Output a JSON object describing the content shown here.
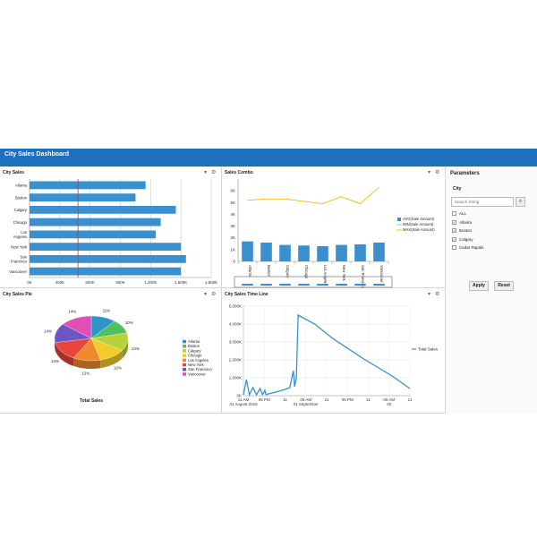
{
  "app": {
    "title": "City Sales Dashboard"
  },
  "panels": {
    "city_sales": "City Sales",
    "sales_combo": "Sales Combo",
    "city_sales_pie": "City Sales Pie",
    "city_sales_time_line": "City Sales Time Line"
  },
  "icons": {
    "collapse": "chevron-down-icon",
    "settings": "gear-icon",
    "search": "search-icon"
  },
  "parameters": {
    "header": "Parameters",
    "city_label": "City",
    "search_placeholder": "Search String",
    "options": [
      {
        "label": "ALL",
        "checked": false
      },
      {
        "label": "Atlanta",
        "checked": true
      },
      {
        "label": "Boston",
        "checked": true
      },
      {
        "label": "Calgary",
        "checked": true
      },
      {
        "label": "Cedar Rapids",
        "checked": false
      }
    ],
    "apply": "Apply",
    "reset": "Reset"
  },
  "colors": {
    "header": "#1f6fbf",
    "bar": "#3a8fcf",
    "ref_line": "#d9342b",
    "max_line": "#f5b800"
  },
  "chart_data": [
    {
      "type": "bar",
      "title": "City Sales",
      "orientation": "horizontal",
      "categories": [
        "Atlanta",
        "Boston",
        "Calgary",
        "Chicago",
        "Los Angeles",
        "New York",
        "San Francisco",
        "Vancouver"
      ],
      "category_labels": [
        [
          "Atlanta"
        ],
        [
          "Boston"
        ],
        [
          "Calgary"
        ],
        [
          "Chicago"
        ],
        [
          "Los",
          "Angeles"
        ],
        [
          "New York"
        ],
        [
          "San",
          "Francisco"
        ],
        [
          "Vancouver"
        ]
      ],
      "values": [
        1150000,
        1050000,
        1450000,
        1300000,
        1250000,
        1500000,
        1550000,
        1500000
      ],
      "xlim": [
        0,
        1800000
      ],
      "ticks": [
        0,
        300000,
        600000,
        900000,
        1200000,
        1500000,
        1800000
      ],
      "tick_labels": [
        "0K",
        "300K",
        "600K",
        "900K",
        "1,200K",
        "1,500K",
        "1,800K"
      ],
      "reference_line": 480000,
      "grid": true
    },
    {
      "type": "bar",
      "title": "Sales Combo",
      "categories": [
        "Atlanta",
        "Boston",
        "Calgary",
        "Chicago",
        "Los Angeles",
        "New York",
        "San Francisco",
        "Vancouver"
      ],
      "series": [
        {
          "name": "AVG(Sale Amount)",
          "type": "bar",
          "values": [
            1700,
            1600,
            1400,
            1350,
            1300,
            1400,
            1450,
            1600
          ]
        },
        {
          "name": "MIN(Sale Amount)",
          "type": "line",
          "values": [
            0,
            0,
            0,
            0,
            0,
            0,
            0,
            0
          ]
        },
        {
          "name": "MAX(Sale Amount)",
          "type": "line",
          "values": [
            5200,
            5300,
            5300,
            5100,
            4900,
            5500,
            4900,
            6300
          ]
        }
      ],
      "ylim": [
        0,
        7000
      ],
      "ticks": [
        0,
        1000,
        2000,
        3000,
        4000,
        5000,
        6000
      ],
      "tick_labels": [
        "0",
        "1K",
        "2K",
        "3K",
        "4K",
        "5K",
        "6K"
      ],
      "legend_position": "right"
    },
    {
      "type": "pie",
      "title": "City Sales Pie",
      "xlabel": "Total Sales",
      "categories": [
        "Atlanta",
        "Boston",
        "Calgary",
        "Chicago",
        "Los Angeles",
        "New York",
        "San Francisco",
        "Vancouver"
      ],
      "values": [
        11,
        10,
        13,
        12,
        12,
        14,
        14,
        14
      ],
      "labels": [
        "11%",
        "10%",
        "13%",
        "12%",
        "12%",
        "14%",
        "14%",
        "14%"
      ],
      "colors": [
        "#2e95c9",
        "#4fbf5f",
        "#b8d33a",
        "#f3cc2c",
        "#f0892c",
        "#e8463c",
        "#6e55c4",
        "#e04fb6"
      ],
      "legend_position": "right"
    },
    {
      "type": "line",
      "title": "City Sales Time Line",
      "series": [
        {
          "name": "Total Sales",
          "x": [
            0,
            0.05,
            0.1,
            0.16,
            0.22,
            0.28,
            0.32,
            0.36,
            0.38,
            0.42,
            0.48,
            0.6,
            0.7,
            0.78,
            0.84,
            0.86,
            0.89,
            0.92,
            1.2,
            1.5,
            2,
            2.5,
            2.8
          ],
          "y": [
            50000,
            900000,
            50000,
            450000,
            50000,
            400000,
            60000,
            300000,
            60000,
            100000,
            150000,
            250000,
            350000,
            450000,
            1400000,
            500000,
            1000000,
            4500000,
            4000000,
            3200000,
            2100000,
            1100000,
            400000
          ]
        }
      ],
      "ylim": [
        0,
        5000000
      ],
      "ticks": [
        0,
        1000000,
        2000000,
        3000000,
        4000000,
        5000000
      ],
      "tick_labels": [
        "0K",
        "1,000K",
        "2,000K",
        "3,000K",
        "4,000K",
        "5,000K"
      ],
      "x_tick_labels": [
        {
          "x": 0,
          "top": "11 AM",
          "bottom": "31 August 2015"
        },
        {
          "x": 0.35,
          "top": "05 PM",
          "bottom": ""
        },
        {
          "x": 0.7,
          "top": "11",
          "bottom": ""
        },
        {
          "x": 1.05,
          "top": "05 AM",
          "bottom": "01 September"
        },
        {
          "x": 1.4,
          "top": "11",
          "bottom": ""
        },
        {
          "x": 1.75,
          "top": "05 PM",
          "bottom": ""
        },
        {
          "x": 2.1,
          "top": "11",
          "bottom": ""
        },
        {
          "x": 2.45,
          "top": "05 AM",
          "bottom": "02"
        },
        {
          "x": 2.8,
          "top": "11",
          "bottom": ""
        }
      ],
      "xlim": [
        0,
        2.8
      ],
      "legend_position": "right"
    }
  ]
}
